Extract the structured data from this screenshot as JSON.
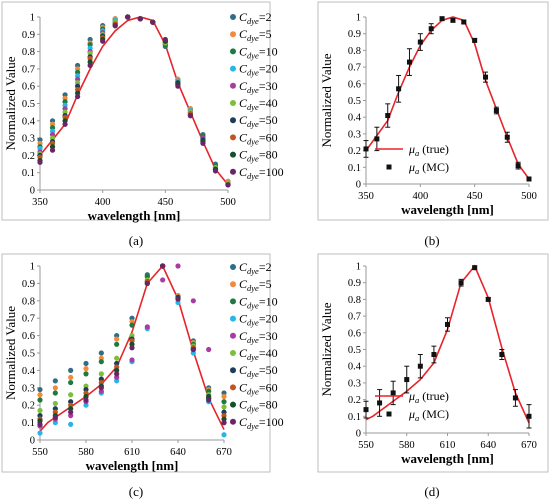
{
  "figure": {
    "captions": [
      "(a)",
      "(b)",
      "(c)",
      "(d)"
    ]
  },
  "chart_data": [
    {
      "type": "scatter",
      "panel": "a",
      "caption": "(a)",
      "xlabel": "wavelength [nm]",
      "ylabel": "Normalized Value",
      "xlim": [
        350,
        500
      ],
      "ylim": [
        0,
        1
      ],
      "xticks": [
        350,
        400,
        450,
        500
      ],
      "yticks": [
        0,
        0.1,
        0.2,
        0.3,
        0.4,
        0.5,
        0.6,
        0.7,
        0.8,
        0.9,
        1
      ],
      "legend_position": "right",
      "x": [
        350,
        360,
        370,
        380,
        390,
        400,
        410,
        420,
        430,
        440,
        450,
        460,
        470,
        480,
        490,
        500
      ],
      "line": {
        "name": "",
        "color": "#e8232a",
        "x": [
          350,
          360,
          370,
          380,
          390,
          400,
          410,
          420,
          430,
          440,
          450,
          460,
          470,
          480,
          490,
          500
        ],
        "y": [
          0.2,
          0.29,
          0.38,
          0.55,
          0.7,
          0.83,
          0.92,
          0.98,
          1.0,
          0.98,
          0.84,
          0.62,
          0.45,
          0.28,
          0.12,
          0.03
        ]
      },
      "series": [
        {
          "name": "C_dye=2",
          "label": "C",
          "sub": "dye",
          "suffix": "=2",
          "color": "#2e6e86",
          "values": [
            0.29,
            0.4,
            0.55,
            0.72,
            0.87,
            0.95,
            0.99,
            1.0,
            0.99,
            0.97,
            0.83,
            0.64,
            0.47,
            0.32,
            0.15,
            0.05
          ]
        },
        {
          "name": "C_dye=5",
          "label": "C",
          "sub": "dye",
          "suffix": "=5",
          "color": "#f08a3c",
          "values": [
            0.27,
            0.38,
            0.53,
            0.7,
            0.85,
            0.94,
            0.99,
            1.0,
            0.99,
            0.97,
            0.84,
            0.64,
            0.47,
            0.31,
            0.14,
            0.05
          ]
        },
        {
          "name": "C_dye=10",
          "label": "C",
          "sub": "dye",
          "suffix": "=10",
          "color": "#1e7a3e",
          "values": [
            0.25,
            0.36,
            0.51,
            0.68,
            0.84,
            0.93,
            0.98,
            1.0,
            0.99,
            0.97,
            0.84,
            0.63,
            0.46,
            0.31,
            0.14,
            0.04
          ]
        },
        {
          "name": "C_dye=20",
          "label": "C",
          "sub": "dye",
          "suffix": "=20",
          "color": "#29b5e8",
          "values": [
            0.24,
            0.34,
            0.49,
            0.66,
            0.82,
            0.92,
            0.98,
            1.0,
            0.99,
            0.97,
            0.85,
            0.63,
            0.46,
            0.3,
            0.13,
            0.04
          ]
        },
        {
          "name": "C_dye=30",
          "label": "C",
          "sub": "dye",
          "suffix": "=30",
          "color": "#a53ea0",
          "values": [
            0.22,
            0.32,
            0.47,
            0.64,
            0.8,
            0.91,
            0.97,
            1.0,
            0.99,
            0.97,
            0.85,
            0.62,
            0.45,
            0.3,
            0.13,
            0.04
          ]
        },
        {
          "name": "C_dye=40",
          "label": "C",
          "sub": "dye",
          "suffix": "=40",
          "color": "#7cbf3b",
          "values": [
            0.21,
            0.3,
            0.45,
            0.62,
            0.79,
            0.9,
            0.97,
            1.0,
            0.99,
            0.97,
            0.85,
            0.62,
            0.45,
            0.29,
            0.13,
            0.04
          ]
        },
        {
          "name": "C_dye=50",
          "label": "C",
          "sub": "dye",
          "suffix": "=50",
          "color": "#1c3d5c",
          "values": [
            0.2,
            0.28,
            0.43,
            0.6,
            0.77,
            0.89,
            0.96,
            1.0,
            0.99,
            0.97,
            0.86,
            0.62,
            0.44,
            0.29,
            0.12,
            0.03
          ]
        },
        {
          "name": "C_dye=60",
          "label": "C",
          "sub": "dye",
          "suffix": "=60",
          "color": "#c2551f",
          "values": [
            0.19,
            0.27,
            0.42,
            0.58,
            0.76,
            0.88,
            0.96,
            1.0,
            0.99,
            0.97,
            0.86,
            0.61,
            0.44,
            0.28,
            0.12,
            0.03
          ]
        },
        {
          "name": "C_dye=80",
          "label": "C",
          "sub": "dye",
          "suffix": "=80",
          "color": "#14502a",
          "values": [
            0.17,
            0.25,
            0.4,
            0.56,
            0.74,
            0.87,
            0.95,
            1.0,
            0.99,
            0.97,
            0.86,
            0.61,
            0.43,
            0.28,
            0.12,
            0.03
          ]
        },
        {
          "name": "C_dye=100",
          "label": "C",
          "sub": "dye",
          "suffix": "=100",
          "color": "#6b2466",
          "values": [
            0.16,
            0.23,
            0.38,
            0.54,
            0.72,
            0.86,
            0.95,
            1.0,
            0.99,
            0.97,
            0.87,
            0.6,
            0.43,
            0.27,
            0.11,
            0.03
          ]
        }
      ]
    },
    {
      "type": "scatter",
      "panel": "b",
      "caption": "(b)",
      "xlabel": "wavelength [nm]",
      "ylabel": "Normalized Value",
      "xlim": [
        350,
        500
      ],
      "ylim": [
        0,
        1
      ],
      "xticks": [
        350,
        400,
        450,
        500
      ],
      "yticks": [
        0,
        0.1,
        0.2,
        0.3,
        0.4,
        0.5,
        0.6,
        0.7,
        0.8,
        0.9,
        1
      ],
      "legend_position": "inside-center-left",
      "line": {
        "name": "μa (true)",
        "label": "μ",
        "sub": "a",
        "suffix": " (true)",
        "color": "#e8232a",
        "x": [
          350,
          360,
          370,
          380,
          390,
          400,
          410,
          420,
          430,
          440,
          450,
          460,
          470,
          480,
          490,
          500
        ],
        "y": [
          0.2,
          0.29,
          0.38,
          0.55,
          0.7,
          0.83,
          0.92,
          0.98,
          1.0,
          0.98,
          0.84,
          0.62,
          0.45,
          0.28,
          0.12,
          0.03
        ]
      },
      "series": [
        {
          "name": "μa (MC)",
          "label": "μ",
          "sub": "a",
          "suffix": " (MC)",
          "color": "#111111",
          "x": [
            350,
            360,
            370,
            380,
            390,
            400,
            410,
            420,
            430,
            440,
            450,
            460,
            470,
            480,
            490,
            500
          ],
          "values": [
            0.21,
            0.27,
            0.41,
            0.57,
            0.73,
            0.85,
            0.93,
            0.99,
            0.98,
            0.97,
            0.86,
            0.64,
            0.44,
            0.28,
            0.11,
            0.03
          ],
          "errors": [
            0.05,
            0.07,
            0.07,
            0.08,
            0.08,
            0.05,
            0.03,
            0.01,
            0.01,
            0.01,
            0.01,
            0.03,
            0.02,
            0.03,
            0.02,
            0.01
          ]
        }
      ]
    },
    {
      "type": "scatter",
      "panel": "c",
      "caption": "(c)",
      "xlabel": "wavelength [nm]",
      "ylabel": "Normalized Value",
      "xlim": [
        550,
        670
      ],
      "ylim": [
        0,
        1
      ],
      "xticks": [
        550,
        580,
        610,
        640,
        670
      ],
      "yticks": [
        0,
        0.1,
        0.2,
        0.3,
        0.4,
        0.5,
        0.6,
        0.7,
        0.8,
        0.9,
        1
      ],
      "legend_position": "right",
      "x": [
        550,
        560,
        570,
        580,
        590,
        600,
        610,
        620,
        630,
        640,
        650,
        660,
        670
      ],
      "line": {
        "name": "",
        "color": "#e8232a",
        "x": [
          550,
          555,
          560,
          570,
          580,
          590,
          600,
          610,
          620,
          630,
          640,
          650,
          660,
          670
        ],
        "y": [
          0.05,
          0.1,
          0.13,
          0.19,
          0.25,
          0.32,
          0.42,
          0.62,
          0.9,
          1.0,
          0.81,
          0.51,
          0.24,
          0.06
        ]
      },
      "series": [
        {
          "name": "C_dye=2",
          "label": "C",
          "sub": "dye",
          "suffix": "=2",
          "color": "#2e6e86",
          "values": [
            0.29,
            0.34,
            0.4,
            0.44,
            0.5,
            0.6,
            0.7,
            0.95,
            1.0,
            0.83,
            0.57,
            0.3,
            0.27
          ]
        },
        {
          "name": "C_dye=5",
          "label": "C",
          "sub": "dye",
          "suffix": "=5",
          "color": "#f08a3c",
          "values": [
            0.26,
            0.3,
            0.36,
            0.41,
            0.47,
            0.58,
            0.68,
            0.94,
            1.0,
            0.83,
            0.56,
            0.29,
            0.25
          ]
        },
        {
          "name": "C_dye=10",
          "label": "C",
          "sub": "dye",
          "suffix": "=10",
          "color": "#1e7a3e",
          "values": [
            0.23,
            0.27,
            0.33,
            0.38,
            0.45,
            0.55,
            0.66,
            0.94,
            1.0,
            0.82,
            0.55,
            0.28,
            0.22
          ]
        },
        {
          "name": "C_dye=20",
          "label": "C",
          "sub": "dye",
          "suffix": "=20",
          "color": "#29b5e8",
          "values": [
            0.04,
            0.1,
            0.09,
            0.2,
            0.27,
            0.34,
            0.45,
            0.64,
            1.0,
            0.79,
            0.5,
            0.22,
            0.03
          ]
        },
        {
          "name": "C_dye=30",
          "label": "C",
          "sub": "dye",
          "suffix": "=30",
          "color": "#a53ea0",
          "values": [
            0.08,
            0.12,
            0.14,
            0.22,
            0.28,
            0.36,
            0.46,
            0.65,
            0.92,
            1.0,
            0.8,
            0.52,
            0.1
          ]
        },
        {
          "name": "C_dye=40",
          "label": "C",
          "sub": "dye",
          "suffix": "=40",
          "color": "#7cbf3b",
          "values": [
            0.17,
            0.21,
            0.26,
            0.31,
            0.38,
            0.47,
            0.6,
            0.92,
            1.0,
            0.82,
            0.54,
            0.26,
            0.19
          ]
        },
        {
          "name": "C_dye=50",
          "label": "C",
          "sub": "dye",
          "suffix": "=50",
          "color": "#1c3d5c",
          "values": [
            0.14,
            0.18,
            0.22,
            0.29,
            0.35,
            0.44,
            0.58,
            0.91,
            1.0,
            0.82,
            0.53,
            0.25,
            0.16
          ]
        },
        {
          "name": "C_dye=60",
          "label": "C",
          "sub": "dye",
          "suffix": "=60",
          "color": "#c2551f",
          "values": [
            0.12,
            0.16,
            0.2,
            0.27,
            0.33,
            0.42,
            0.57,
            0.91,
            1.0,
            0.81,
            0.53,
            0.24,
            0.14
          ]
        },
        {
          "name": "C_dye=80",
          "label": "C",
          "sub": "dye",
          "suffix": "=80",
          "color": "#14502a",
          "values": [
            0.11,
            0.14,
            0.18,
            0.25,
            0.31,
            0.4,
            0.55,
            0.9,
            1.0,
            0.81,
            0.52,
            0.24,
            0.12
          ]
        },
        {
          "name": "C_dye=100",
          "label": "C",
          "sub": "dye",
          "suffix": "=100",
          "color": "#6b2466",
          "values": [
            0.09,
            0.13,
            0.16,
            0.23,
            0.3,
            0.38,
            0.53,
            0.9,
            1.0,
            0.81,
            0.52,
            0.23,
            0.1
          ]
        }
      ]
    },
    {
      "type": "scatter",
      "panel": "d",
      "caption": "(d)",
      "xlabel": "wavelength [nm]",
      "ylabel": "Normalized Value",
      "xlim": [
        550,
        670
      ],
      "ylim": [
        0,
        1
      ],
      "xticks": [
        550,
        580,
        610,
        640,
        670
      ],
      "yticks": [
        0,
        0.1,
        0.2,
        0.3,
        0.4,
        0.5,
        0.6,
        0.7,
        0.8,
        0.9,
        1
      ],
      "legend_position": "inside-lower-left",
      "line": {
        "name": "μa (true)",
        "label": "μ",
        "sub": "a",
        "suffix": " (true)",
        "color": "#e8232a",
        "x": [
          550,
          555,
          560,
          570,
          580,
          590,
          600,
          610,
          620,
          630,
          640,
          650,
          660,
          670
        ],
        "y": [
          0.08,
          0.1,
          0.13,
          0.19,
          0.25,
          0.32,
          0.42,
          0.62,
          0.9,
          1.0,
          0.81,
          0.51,
          0.24,
          0.06
        ]
      },
      "series": [
        {
          "name": "μa (MC)",
          "label": "μ",
          "sub": "a",
          "suffix": " (MC)",
          "color": "#111111",
          "x": [
            550,
            560,
            570,
            580,
            590,
            600,
            610,
            620,
            630,
            640,
            650,
            660,
            670
          ],
          "values": [
            0.14,
            0.18,
            0.24,
            0.32,
            0.4,
            0.47,
            0.65,
            0.9,
            0.99,
            0.8,
            0.47,
            0.21,
            0.1
          ],
          "errors": [
            0.05,
            0.08,
            0.07,
            0.08,
            0.07,
            0.05,
            0.04,
            0.02,
            0.01,
            0.01,
            0.03,
            0.05,
            0.07
          ]
        }
      ]
    }
  ]
}
